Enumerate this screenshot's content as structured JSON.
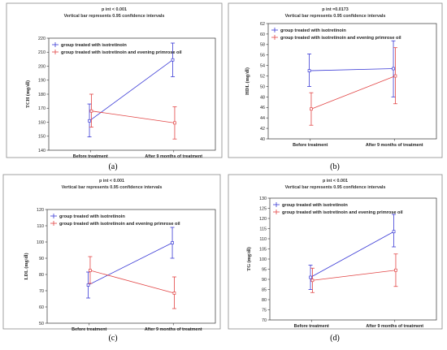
{
  "colors": {
    "isotretinoin": "#3b3bd6",
    "combined": "#e24545",
    "frame": "#8a8a8a"
  },
  "chart_data": [
    {
      "type": "line",
      "panel_label": "(a)",
      "stat_line": "p int < 0.001",
      "ci_note": "Vertical bar represents 0.95 confidence intervals",
      "ylabel": "TCH (mg/dl)",
      "ylim": [
        140,
        220
      ],
      "yticks": [
        140,
        150,
        160,
        170,
        180,
        190,
        200,
        210,
        220
      ],
      "categories": [
        "Before treatment",
        "After 9 months of treatment"
      ],
      "legend_position": "top-left",
      "series": [
        {
          "name": "group treated with isotretinoin",
          "values": [
            161,
            204.5
          ],
          "ci_low": [
            149.5,
            192.5
          ],
          "ci_high": [
            173,
            216.5
          ]
        },
        {
          "name": "group treated with isotretinoin and evening primrose oil",
          "values": [
            168,
            159.5
          ],
          "ci_low": [
            156.5,
            148
          ],
          "ci_high": [
            180,
            171
          ]
        }
      ]
    },
    {
      "type": "line",
      "panel_label": "(b)",
      "stat_line": "p int =0.0173",
      "ci_note": "Vertical bar represents 0.95 confidence intervals",
      "ylabel": "HDL (mg/dl)",
      "ylim": [
        40,
        62
      ],
      "yticks": [
        40,
        42,
        44,
        46,
        48,
        50,
        52,
        54,
        56,
        58,
        60,
        62
      ],
      "categories": [
        "Before treatment",
        "After 9 months of treatment"
      ],
      "legend_position": "top-left",
      "series": [
        {
          "name": "group treated with isotretinoin",
          "values": [
            53,
            53.4
          ],
          "ci_low": [
            50,
            48
          ],
          "ci_high": [
            56.2,
            58.7
          ]
        },
        {
          "name": "group treated with isotretinoin and evening primrose oil",
          "values": [
            45.7,
            52
          ],
          "ci_low": [
            42.6,
            46.7
          ],
          "ci_high": [
            48.8,
            57.4
          ]
        }
      ]
    },
    {
      "type": "line",
      "panel_label": "(c)",
      "stat_line": "p int < 0.001",
      "ci_note": "Vertical bar represents 0.95 confidence intervals",
      "ylabel": "LDL (mg/dl)",
      "ylim": [
        50,
        120
      ],
      "yticks": [
        50,
        60,
        70,
        80,
        90,
        100,
        110,
        120
      ],
      "categories": [
        "Before treatment",
        "After 9 months of treatment"
      ],
      "legend_position": "top-left",
      "series": [
        {
          "name": "group treated with isotretinoin",
          "values": [
            73.5,
            99.5
          ],
          "ci_low": [
            65.5,
            90
          ],
          "ci_high": [
            81.5,
            109
          ]
        },
        {
          "name": "group treated with isotretinoin and evening primrose oil",
          "values": [
            82.5,
            68.5
          ],
          "ci_low": [
            74.5,
            59
          ],
          "ci_high": [
            91,
            78.5
          ]
        }
      ]
    },
    {
      "type": "line",
      "panel_label": "(d)",
      "stat_line": "p int < 0.001",
      "ci_note": "Vertical bar represents 0.95 confidence intervals",
      "ylabel": "TG (mg/dl)",
      "ylim": [
        70,
        130
      ],
      "yticks": [
        70,
        75,
        80,
        85,
        90,
        95,
        100,
        105,
        110,
        115,
        120,
        125,
        130
      ],
      "categories": [
        "Before treatment",
        "After 9 months of treatment"
      ],
      "legend_position": "top-left",
      "series": [
        {
          "name": "group treated with isotretinoin",
          "values": [
            91,
            113.5
          ],
          "ci_low": [
            85,
            106
          ],
          "ci_high": [
            97,
            122
          ]
        },
        {
          "name": "group treated with isotretinoin and evening primrose oil",
          "values": [
            89.5,
            94.5
          ],
          "ci_low": [
            83.5,
            86.5
          ],
          "ci_high": [
            95.5,
            102.5
          ]
        }
      ]
    }
  ]
}
